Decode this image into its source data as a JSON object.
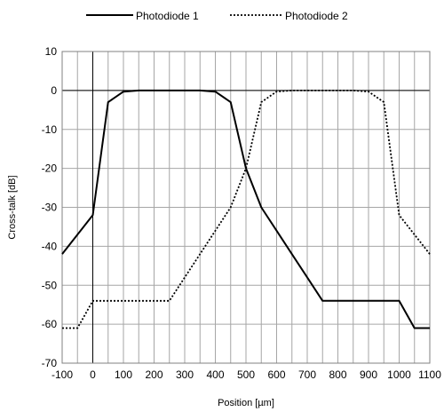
{
  "chart_data": {
    "type": "line",
    "xlabel": "Position [µm]",
    "ylabel": "Cross-talk [dB]",
    "xlim": [
      -100,
      1100
    ],
    "ylim": [
      -70,
      10
    ],
    "x_ticks": [
      -100,
      0,
      100,
      200,
      300,
      400,
      500,
      600,
      700,
      800,
      900,
      1000,
      1100
    ],
    "y_ticks": [
      10,
      0,
      -10,
      -20,
      -30,
      -40,
      -50,
      -60,
      -70
    ],
    "x_minor_step": 50,
    "grid": true,
    "legend_position": "top-center",
    "series": [
      {
        "name": "Photodiode 1",
        "style": "solid",
        "color": "#000000",
        "x": [
          -100,
          0,
          50,
          100,
          150,
          200,
          250,
          300,
          350,
          400,
          450,
          500,
          550,
          600,
          650,
          700,
          750,
          800,
          850,
          900,
          950,
          1000,
          1050,
          1100
        ],
        "y": [
          -42,
          -32,
          -3,
          -0.3,
          0,
          0,
          0,
          0,
          0,
          -0.3,
          -3,
          -20,
          -30,
          -36,
          -42,
          -48,
          -54,
          -54,
          -54,
          -54,
          -54,
          -54,
          -61,
          -61
        ]
      },
      {
        "name": "Photodiode 2",
        "style": "dotted",
        "color": "#000000",
        "x": [
          -100,
          -50,
          0,
          50,
          100,
          150,
          200,
          250,
          300,
          350,
          400,
          450,
          500,
          550,
          600,
          650,
          700,
          750,
          800,
          850,
          900,
          950,
          1000,
          1050,
          1100
        ],
        "y": [
          -61,
          -61,
          -54,
          -54,
          -54,
          -54,
          -54,
          -54,
          -48,
          -42,
          -36,
          -30,
          -20,
          -3,
          -0.3,
          0,
          0,
          0,
          0,
          0,
          -0.3,
          -3,
          -32,
          -37,
          -42
        ]
      }
    ]
  }
}
